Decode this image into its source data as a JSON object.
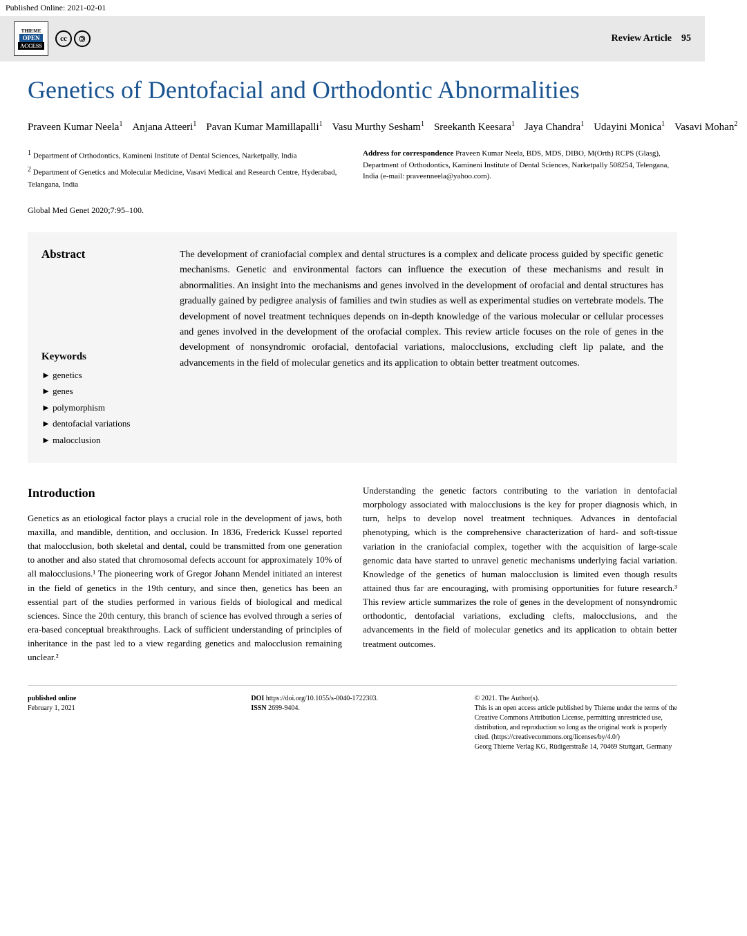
{
  "published_online_label": "Published Online: 2021-02-01",
  "header": {
    "review_label": "Review Article",
    "page_number": "95"
  },
  "title": "Genetics of Dentofacial and Orthodontic Abnormalities",
  "authors": [
    {
      "name": "Praveen Kumar Neela",
      "aff": "1"
    },
    {
      "name": "Anjana Atteeri",
      "aff": "1"
    },
    {
      "name": "Pavan Kumar Mamillapalli",
      "aff": "1"
    },
    {
      "name": "Vasu Murthy Sesham",
      "aff": "1"
    },
    {
      "name": "Sreekanth Keesara",
      "aff": "1"
    },
    {
      "name": "Jaya Chandra",
      "aff": "1"
    },
    {
      "name": "Udayini Monica",
      "aff": "1"
    },
    {
      "name": "Vasavi Mohan",
      "aff": "2"
    }
  ],
  "affiliations": [
    {
      "num": "1",
      "text": "Department of Orthodontics, Kamineni Institute of Dental Sciences, Narketpally, India"
    },
    {
      "num": "2",
      "text": "Department of Genetics and Molecular Medicine, Vasavi Medical and Research Centre, Hyderabad, Telangana, India"
    }
  ],
  "correspondence": {
    "label": "Address for correspondence",
    "text": "Praveen Kumar Neela, BDS, MDS, DIBO, M(Orth) RCPS (Glasg), Department of Orthodontics, Kamineni Institute of Dental Sciences, Narketpally 508254, Telengana, India (e-mail: praveenneela@yahoo.com)."
  },
  "citation": "Global Med Genet 2020;7:95–100.",
  "abstract": {
    "label": "Abstract",
    "text": "The development of craniofacial complex and dental structures is a complex and delicate process guided by specific genetic mechanisms. Genetic and environmental factors can influence the execution of these mechanisms and result in abnormalities. An insight into the mechanisms and genes involved in the development of orofacial and dental structures has gradually gained by pedigree analysis of families and twin studies as well as experimental studies on vertebrate models. The development of novel treatment techniques depends on in-depth knowledge of the various molecular or cellular processes and genes involved in the development of the orofacial complex. This review article focuses on the role of genes in the development of nonsyndromic orofacial, dentofacial variations, malocclusions, excluding cleft lip palate, and the advancements in the field of molecular genetics and its application to obtain better treatment outcomes."
  },
  "keywords": {
    "label": "Keywords",
    "items": [
      "genetics",
      "genes",
      "polymorphism",
      "dentofacial variations",
      "malocclusion"
    ]
  },
  "body": {
    "intro_heading": "Introduction",
    "col1": "Genetics as an etiological factor plays a crucial role in the development of jaws, both maxilla, and mandible, dentition, and occlusion. In 1836, Frederick Kussel reported that malocclusion, both skeletal and dental, could be transmitted from one generation to another and also stated that chromosomal defects account for approximately 10% of all malocclusions.¹ The pioneering work of Gregor Johann Mendel initiated an interest in the field of genetics in the 19th century, and since then, genetics has been an essential part of the studies performed in various fields of biological and medical sciences. Since the 20th century, this branch of science has evolved through a series of era-based conceptual breakthroughs. Lack of sufficient understanding of principles of inheritance in the past led to a view regarding genetics and malocclusion remaining unclear.²",
    "col2": "Understanding the genetic factors contributing to the variation in dentofacial morphology associated with malocclusions is the key for proper diagnosis which, in turn, helps to develop novel treatment techniques. Advances in dentofacial phenotyping, which is the comprehensive characterization of hard- and soft-tissue variation in the craniofacial complex, together with the acquisition of large-scale genomic data have started to unravel genetic mechanisms underlying facial variation. Knowledge of the genetics of human malocclusion is limited even though results attained thus far are encouraging, with promising opportunities for future research.³ This review article summarizes the role of genes in the development of nonsyndromic orthodontic, dentofacial variations, excluding clefts, malocclusions, and the advancements in the field of molecular genetics and its application to obtain better treatment outcomes."
  },
  "footer": {
    "col1": {
      "label": "published online",
      "date": "February 1, 2021"
    },
    "col2": {
      "doi_label": "DOI",
      "doi": "https://doi.org/10.1055/s-0040-1722303.",
      "issn_label": "ISSN",
      "issn": "2699-9404."
    },
    "col3": {
      "copyright": "© 2021. The Author(s).",
      "license": "This is an open access article published by Thieme under the terms of the Creative Commons Attribution License, permitting unrestricted use, distribution, and reproduction so long as the original work is properly cited. (https://creativecommons.org/licenses/by/4.0/)",
      "publisher": "Georg Thieme Verlag KG, Rüdigerstraße 14, 70469 Stuttgart, Germany"
    }
  },
  "colors": {
    "title_color": "#1a5490",
    "abstract_bg": "#f5f5f5",
    "header_bg": "#e8e8e8"
  }
}
